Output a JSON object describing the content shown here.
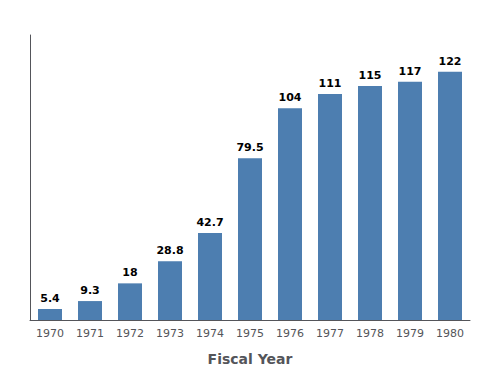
{
  "chart_data": {
    "type": "bar",
    "xlabel": "Fiscal Year",
    "categories": [
      "1970",
      "1971",
      "1972",
      "1973",
      "1974",
      "1975",
      "1976",
      "1977",
      "1978",
      "1979",
      "1980"
    ],
    "values": [
      5.4,
      9.3,
      18,
      28.8,
      42.7,
      79.5,
      104,
      111,
      115,
      117,
      122
    ],
    "color": "#4d7eb0",
    "ylim": [
      0,
      140
    ],
    "grid": false,
    "data_labels": true,
    "tick_labels": "x"
  }
}
